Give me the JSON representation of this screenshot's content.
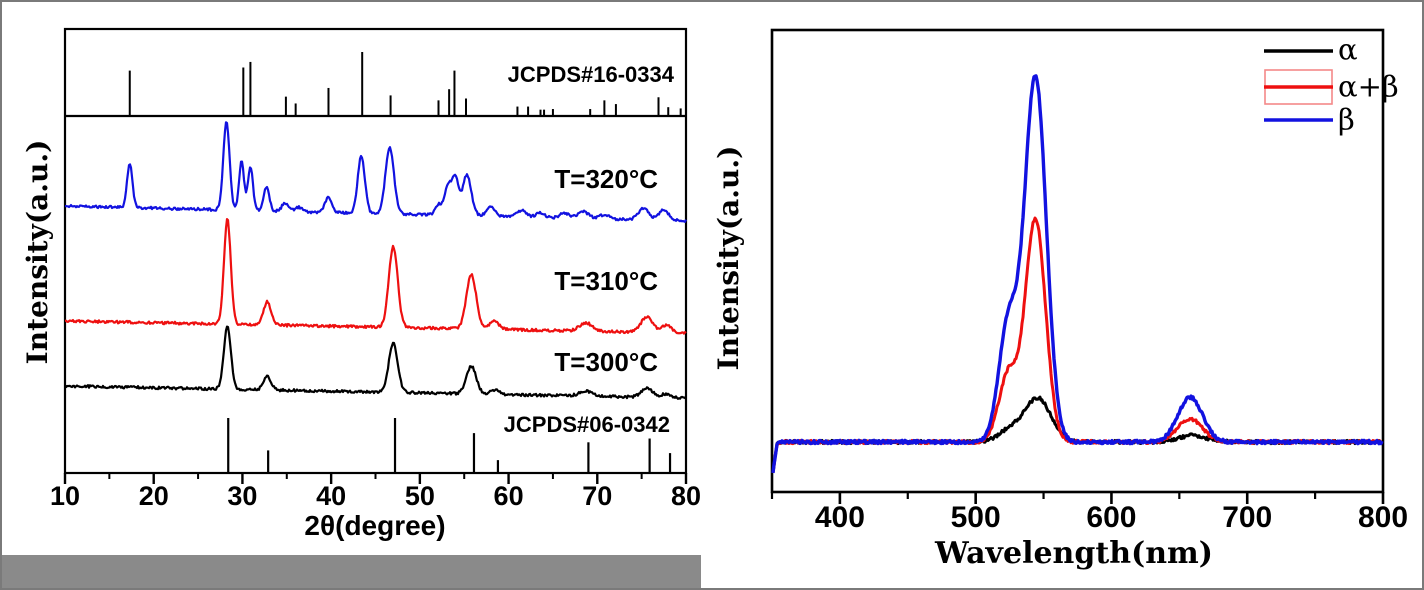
{
  "frame": {
    "border_color": "#7a7a7a",
    "background": "#ffffff",
    "gray_bar_color": "#8a8a8a"
  },
  "chart_data": [
    {
      "id": "xrd",
      "type": "line",
      "title": "",
      "xlabel": "2θ(degree)",
      "ylabel": "Intensity(a.u.)",
      "xlim": [
        10,
        80
      ],
      "x_major_ticks": [
        10,
        20,
        30,
        40,
        50,
        60,
        70,
        80
      ],
      "x_minor_ticks": [
        15,
        25,
        35,
        45,
        55,
        65,
        75
      ],
      "grid": false,
      "y_axis_units": "arbitrary",
      "references": [
        {
          "label": "JCPDS#16-0334",
          "position": "top-panel",
          "sticks_deg_relheight": [
            [
              17.3,
              0.7
            ],
            [
              30.1,
              0.75
            ],
            [
              30.9,
              0.84
            ],
            [
              34.9,
              0.28
            ],
            [
              36.0,
              0.17
            ],
            [
              39.7,
              0.42
            ],
            [
              43.5,
              1.0
            ],
            [
              46.7,
              0.3
            ],
            [
              52.1,
              0.22
            ],
            [
              53.3,
              0.4
            ],
            [
              53.9,
              0.7
            ],
            [
              55.2,
              0.25
            ],
            [
              61.0,
              0.12
            ],
            [
              62.2,
              0.12
            ],
            [
              63.6,
              0.07
            ],
            [
              64.0,
              0.07
            ],
            [
              65.0,
              0.08
            ],
            [
              69.2,
              0.08
            ],
            [
              70.8,
              0.22
            ],
            [
              72.1,
              0.16
            ],
            [
              76.9,
              0.27
            ],
            [
              78.0,
              0.11
            ],
            [
              79.4,
              0.09
            ]
          ]
        },
        {
          "label": "JCPDS#06-0342",
          "position": "bottom-of-main-panel",
          "sticks_deg_relheight": [
            [
              28.4,
              1.0
            ],
            [
              32.9,
              0.4
            ],
            [
              47.2,
              1.0
            ],
            [
              56.1,
              0.72
            ],
            [
              58.8,
              0.22
            ],
            [
              69.0,
              0.55
            ],
            [
              75.9,
              0.62
            ],
            [
              78.2,
              0.35
            ]
          ]
        }
      ],
      "series": [
        {
          "name": "T=320°C",
          "color": "#1212e0",
          "peaks_deg_relheight_sigma": [
            [
              17.3,
              0.5,
              0.3
            ],
            [
              28.2,
              1.0,
              0.35
            ],
            [
              29.9,
              0.55,
              0.28
            ],
            [
              30.9,
              0.5,
              0.28
            ],
            [
              32.7,
              0.27,
              0.32
            ],
            [
              34.8,
              0.1,
              0.35
            ],
            [
              36.3,
              0.05,
              0.4
            ],
            [
              39.7,
              0.17,
              0.38
            ],
            [
              43.4,
              0.65,
              0.4
            ],
            [
              46.6,
              0.75,
              0.48
            ],
            [
              52.2,
              0.12,
              0.4
            ],
            [
              53.2,
              0.33,
              0.36
            ],
            [
              54.0,
              0.42,
              0.36
            ],
            [
              55.3,
              0.46,
              0.5
            ],
            [
              58.0,
              0.1,
              0.5
            ],
            [
              61.5,
              0.08,
              0.5
            ],
            [
              63.6,
              0.05,
              0.5
            ],
            [
              66.3,
              0.06,
              0.5
            ],
            [
              68.4,
              0.08,
              0.6
            ],
            [
              70.8,
              0.05,
              0.5
            ],
            [
              75.2,
              0.13,
              0.6
            ],
            [
              77.5,
              0.12,
              0.55
            ]
          ]
        },
        {
          "name": "T=310°C",
          "color": "#ee1010",
          "peaks_deg_relheight_sigma": [
            [
              28.3,
              1.0,
              0.38
            ],
            [
              32.8,
              0.22,
              0.42
            ],
            [
              47.0,
              0.77,
              0.5
            ],
            [
              55.8,
              0.52,
              0.55
            ],
            [
              58.4,
              0.08,
              0.5
            ],
            [
              68.7,
              0.08,
              0.7
            ],
            [
              75.6,
              0.15,
              0.65
            ],
            [
              77.8,
              0.07,
              0.55
            ]
          ]
        },
        {
          "name": "T=300°C",
          "color": "#000000",
          "peaks_deg_relheight_sigma": [
            [
              28.3,
              1.0,
              0.4
            ],
            [
              32.8,
              0.22,
              0.42
            ],
            [
              47.0,
              0.8,
              0.5
            ],
            [
              55.8,
              0.45,
              0.55
            ],
            [
              58.4,
              0.07,
              0.5
            ],
            [
              68.7,
              0.08,
              0.7
            ],
            [
              75.6,
              0.14,
              0.65
            ],
            [
              77.8,
              0.06,
              0.55
            ]
          ]
        }
      ]
    },
    {
      "id": "pl",
      "type": "line",
      "title": "",
      "xlabel": "Wavelength(nm)",
      "ylabel": "Intensity(a.u.)",
      "xlim": [
        350,
        800
      ],
      "x_major_ticks": [
        400,
        500,
        600,
        700,
        800
      ],
      "x_minor_ticks": [
        350,
        450,
        550,
        650,
        750
      ],
      "grid": false,
      "legend_position": "top-right",
      "legend": [
        {
          "label": "α",
          "color": "#000000",
          "boxed": false
        },
        {
          "label": "α+β",
          "color": "#ee1010",
          "boxed": true,
          "box_color": "#f48989"
        },
        {
          "label": "β",
          "color": "#1212e0",
          "boxed": false
        }
      ],
      "series": [
        {
          "name": "α",
          "color": "#000000",
          "peaks_nm_relheight_sigma": [
            [
              526,
              0.033,
              9
            ],
            [
              546,
              0.118,
              9.5
            ],
            [
              660,
              0.018,
              10
            ]
          ]
        },
        {
          "name": "α+β",
          "color": "#ee1010",
          "peaks_nm_relheight_sigma": [
            [
              524,
              0.185,
              7
            ],
            [
              544,
              0.61,
              7.5
            ],
            [
              658,
              0.064,
              9
            ]
          ]
        },
        {
          "name": "β",
          "color": "#1212e0",
          "peaks_nm_relheight_sigma": [
            [
              524,
              0.32,
              7
            ],
            [
              544,
              1.0,
              8
            ],
            [
              658,
              0.123,
              9
            ]
          ]
        }
      ]
    }
  ]
}
